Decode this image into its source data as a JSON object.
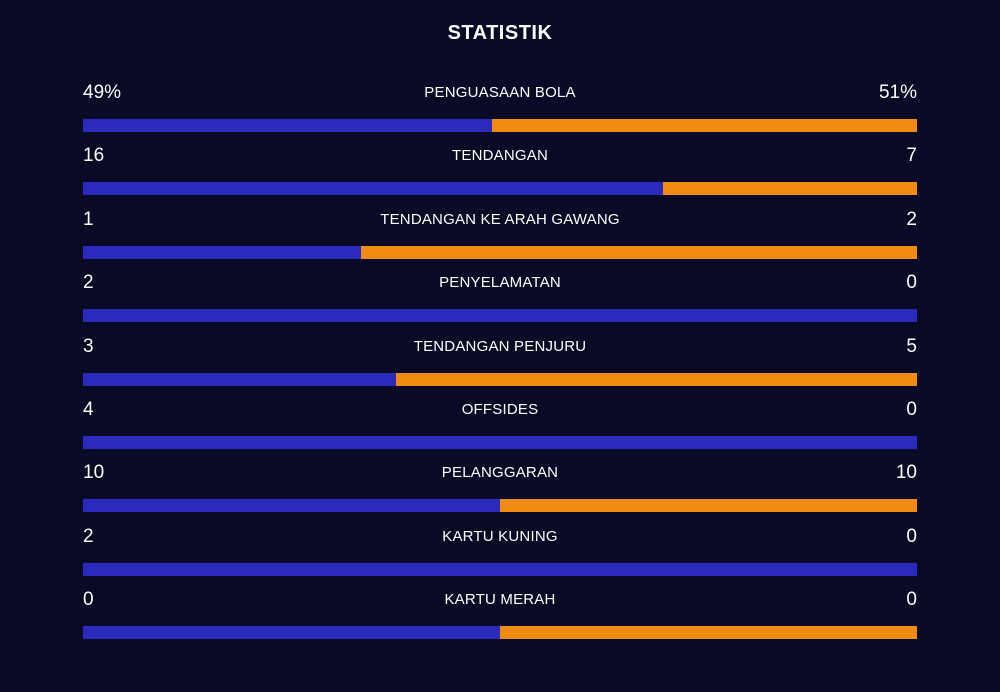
{
  "title": "STATISTIK",
  "colors": {
    "background": "#080a26",
    "home": "#2a2bbd",
    "away": "#f08c12"
  },
  "stats": [
    {
      "label": "PENGUASAAN BOLA",
      "home": "49%",
      "away": "51%",
      "home_share": 0.49
    },
    {
      "label": "TENDANGAN",
      "home": "16",
      "away": "7",
      "home_share": 0.695
    },
    {
      "label": "TENDANGAN KE ARAH GAWANG",
      "home": "1",
      "away": "2",
      "home_share": 0.333
    },
    {
      "label": "PENYELAMATAN",
      "home": "2",
      "away": "0",
      "home_share": 1.0
    },
    {
      "label": "TENDANGAN PENJURU",
      "home": "3",
      "away": "5",
      "home_share": 0.375
    },
    {
      "label": "OFFSIDES",
      "home": "4",
      "away": "0",
      "home_share": 1.0
    },
    {
      "label": "PELANGGARAN",
      "home": "10",
      "away": "10",
      "home_share": 0.5
    },
    {
      "label": "KARTU KUNING",
      "home": "2",
      "away": "0",
      "home_share": 1.0
    },
    {
      "label": "KARTU MERAH",
      "home": "0",
      "away": "0",
      "home_share": 0.5
    }
  ]
}
